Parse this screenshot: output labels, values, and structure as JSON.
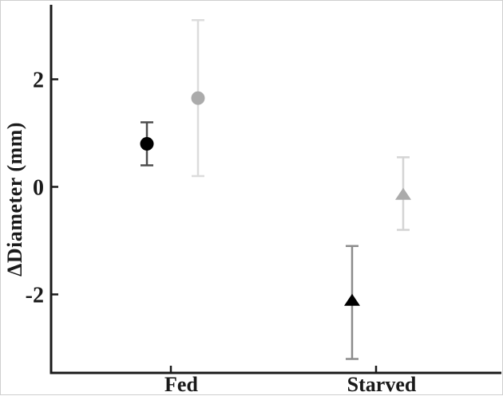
{
  "figure": {
    "background": "#ffffff",
    "border_color": "#cfcfcf",
    "axis_color": "#1a1a1a"
  },
  "chart_data": {
    "type": "scatter",
    "title": "",
    "xlabel": "",
    "ylabel": "ΔDiameter (mm)",
    "categories": [
      "Fed",
      "Starved"
    ],
    "y_ticks": [
      2,
      0,
      -2
    ],
    "ylim": [
      -3.45,
      3.4
    ],
    "grid": false,
    "legend": "none",
    "series": [
      {
        "name": "black",
        "marker_color": "#000000",
        "points": [
          {
            "category": "Fed",
            "marker": "circle",
            "y": 0.8,
            "err_lo": 0.4,
            "err_hi": 1.2,
            "bar_color": "#4d4d4d"
          },
          {
            "category": "Starved",
            "marker": "triangle",
            "y": -2.1,
            "err_lo": -3.2,
            "err_hi": -1.1,
            "bar_color": "#8c8c8c"
          }
        ]
      },
      {
        "name": "gray",
        "marker_color": "#ababab",
        "points": [
          {
            "category": "Fed",
            "marker": "circle",
            "y": 1.65,
            "err_lo": 0.2,
            "err_hi": 3.1,
            "bar_color": "#dcdcdc"
          },
          {
            "category": "Starved",
            "marker": "triangle",
            "y": -0.13,
            "err_lo": -0.8,
            "err_hi": 0.55,
            "bar_color": "#d4d4d4"
          }
        ]
      }
    ]
  }
}
